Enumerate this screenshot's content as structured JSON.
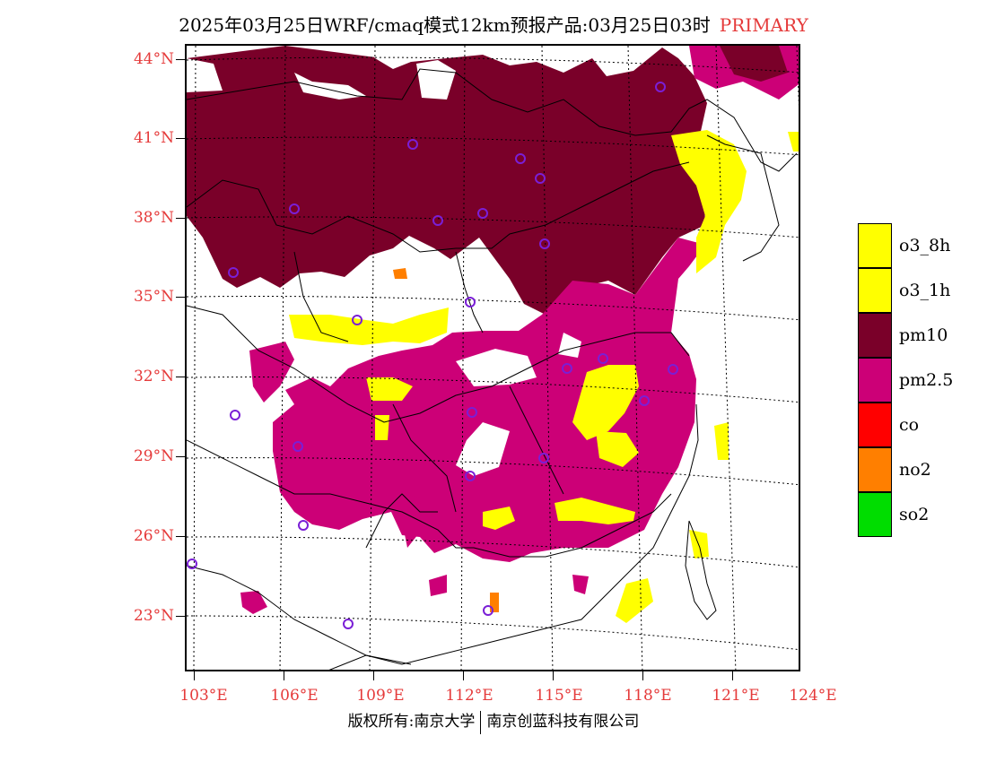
{
  "title": {
    "main": "2025年03月25日WRF/cmaq模式12km预报产品:03月25日03时",
    "primary": "PRIMARY",
    "primary_color": "#e53a3a"
  },
  "axes": {
    "lat_labels": [
      "44°N",
      "41°N",
      "38°N",
      "35°N",
      "32°N",
      "29°N",
      "26°N",
      "23°N"
    ],
    "lon_labels": [
      "103°E",
      "106°E",
      "109°E",
      "112°E",
      "115°E",
      "118°E",
      "121°E",
      "124°E"
    ],
    "label_color": "#e53a3a"
  },
  "legend": {
    "items": [
      {
        "label": "o3_8h",
        "color": "#ffff00"
      },
      {
        "label": "o3_1h",
        "color": "#ffff00"
      },
      {
        "label": "pm10",
        "color": "#7a0029"
      },
      {
        "label": "pm2.5",
        "color": "#cc0077"
      },
      {
        "label": "co",
        "color": "#ff0000"
      },
      {
        "label": "no2",
        "color": "#ff7f00"
      },
      {
        "label": "so2",
        "color": "#00dd00"
      }
    ]
  },
  "colors": {
    "pm10": "#7a0029",
    "pm25": "#cc0077",
    "o3": "#ffff00",
    "no2": "#ff7f00",
    "station": "#7a1fd6"
  },
  "footer": {
    "left": "版权所有:南京大学",
    "right": "南京创蓝科技有限公司"
  }
}
